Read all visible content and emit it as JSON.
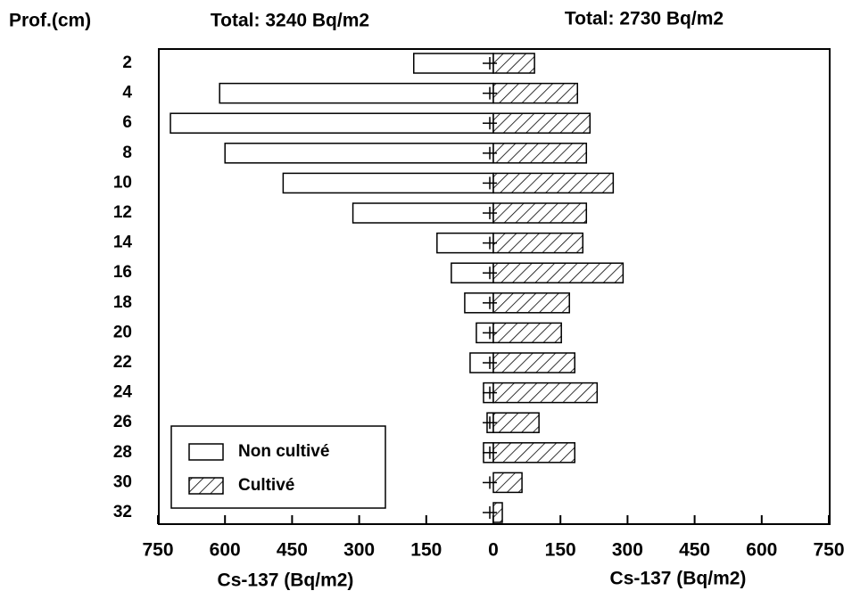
{
  "chart_data": {
    "type": "butterfly",
    "ylabel": "Prof.(cm)",
    "xlabel": "Cs-137 (Bq/m2)",
    "categories": [
      "2",
      "4",
      "6",
      "8",
      "10",
      "12",
      "14",
      "16",
      "18",
      "20",
      "22",
      "24",
      "26",
      "28",
      "30",
      "32"
    ],
    "series": [
      {
        "name": "Non cultivé",
        "side": "left",
        "color": "#ffffff",
        "total": "Total: 3240 Bq/m2",
        "values": [
          178,
          612,
          722,
          600,
          470,
          314,
          126,
          94,
          64,
          38,
          52,
          22,
          14,
          22,
          0,
          0
        ]
      },
      {
        "name": "Cultivé",
        "side": "right",
        "color": "hatch",
        "total": "Total: 2730 Bq/m2",
        "values": [
          92,
          188,
          216,
          208,
          268,
          208,
          200,
          290,
          170,
          152,
          182,
          232,
          102,
          182,
          64,
          20
        ]
      }
    ],
    "xlim": [
      0,
      750
    ],
    "xticks": [
      0,
      150,
      300,
      450,
      600,
      750
    ],
    "legend": "lower-left"
  }
}
